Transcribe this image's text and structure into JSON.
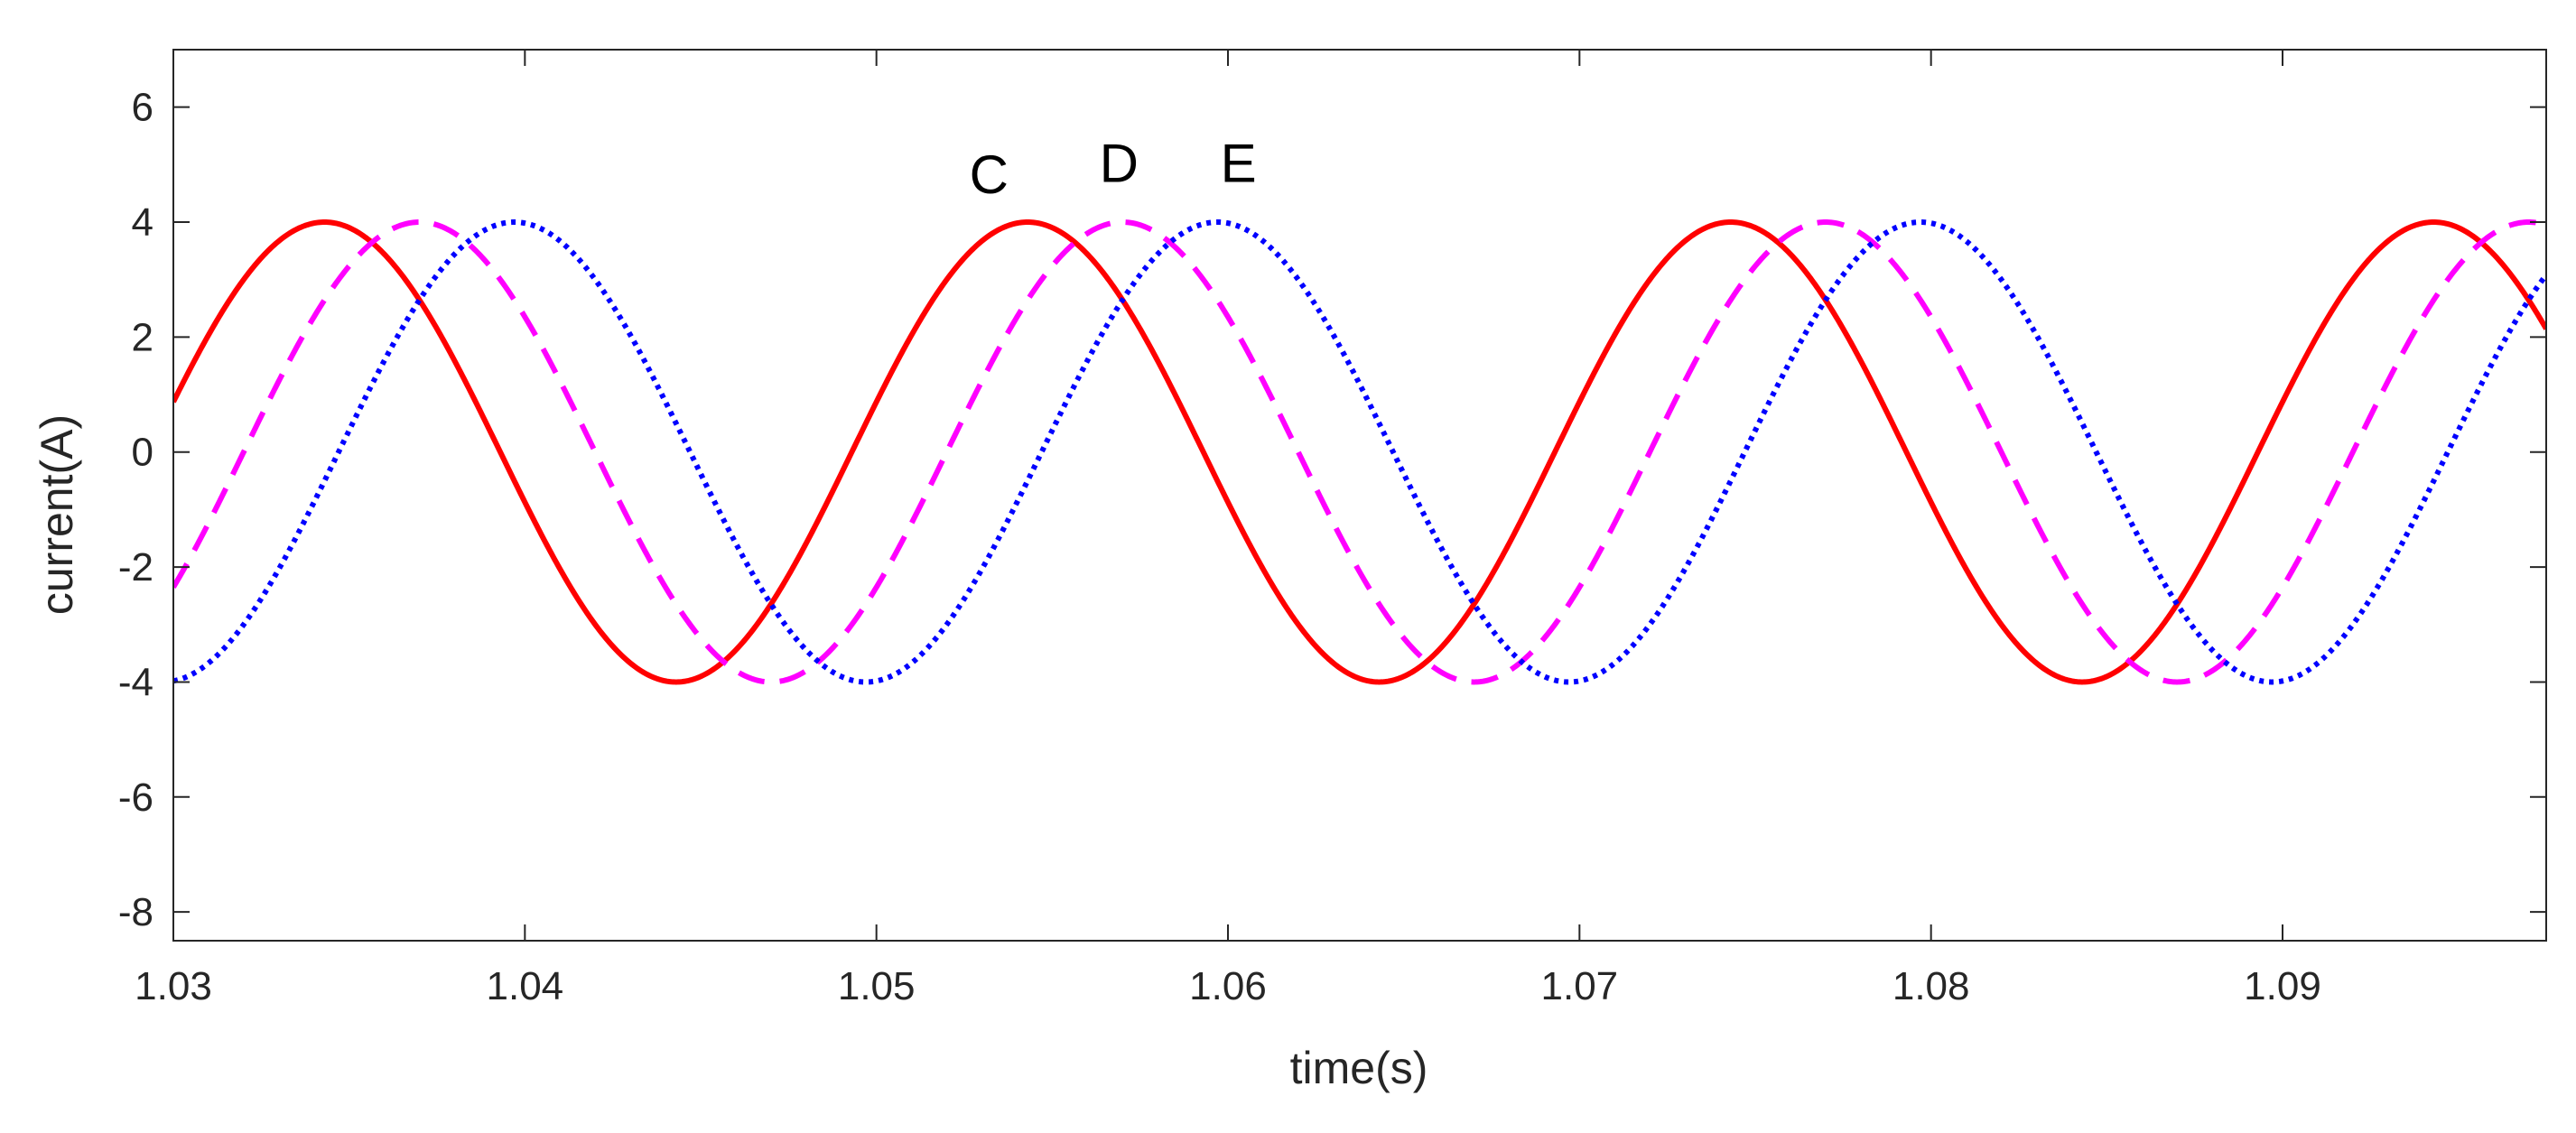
{
  "chart_data": {
    "type": "line",
    "title": "",
    "xlabel": "time(s)",
    "ylabel": "current(A)",
    "xlim": [
      1.03,
      1.0975
    ],
    "ylim": [
      -8.5,
      7
    ],
    "xticks": [
      1.03,
      1.04,
      1.05,
      1.06,
      1.07,
      1.08,
      1.09
    ],
    "xtick_labels": [
      "1.03",
      "1.04",
      "1.05",
      "1.06",
      "1.07",
      "1.08",
      "1.09"
    ],
    "yticks": [
      6,
      4,
      2,
      0,
      -2,
      -4,
      -6,
      -8
    ],
    "ytick_labels": [
      "6",
      "4",
      "2",
      "0",
      "-2",
      "-4",
      "-6",
      "-8"
    ],
    "grid": false,
    "series": [
      {
        "name": "C",
        "style": "solid",
        "color": "#ff0000",
        "amplitude": 4,
        "frequency_hz": 50,
        "peak_time": 1.0343
      },
      {
        "name": "D",
        "style": "dashed",
        "color": "#ff00ff",
        "amplitude": 4,
        "frequency_hz": 50,
        "peak_time": 1.037
      },
      {
        "name": "E",
        "style": "dotted",
        "color": "#0000ff",
        "amplitude": 4,
        "frequency_hz": 50,
        "peak_time": 1.0397
      }
    ],
    "annotations": [
      {
        "text": "C",
        "x": 1.0532,
        "y": 4.5
      },
      {
        "text": "D",
        "x": 1.0569,
        "y": 4.7
      },
      {
        "text": "E",
        "x": 1.0603,
        "y": 4.7
      }
    ]
  }
}
